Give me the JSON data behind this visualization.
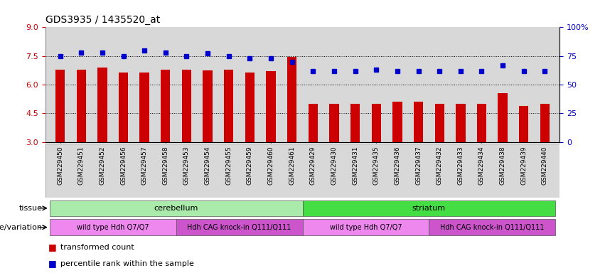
{
  "title": "GDS3935 / 1435520_at",
  "samples": [
    "GSM229450",
    "GSM229451",
    "GSM229452",
    "GSM229456",
    "GSM229457",
    "GSM229458",
    "GSM229453",
    "GSM229454",
    "GSM229455",
    "GSM229459",
    "GSM229460",
    "GSM229461",
    "GSM229429",
    "GSM229430",
    "GSM229431",
    "GSM229435",
    "GSM229436",
    "GSM229437",
    "GSM229432",
    "GSM229433",
    "GSM229434",
    "GSM229438",
    "GSM229439",
    "GSM229440"
  ],
  "bar_values": [
    6.8,
    6.8,
    6.9,
    6.65,
    6.65,
    6.8,
    6.8,
    6.75,
    6.8,
    6.65,
    6.7,
    7.45,
    5.0,
    5.0,
    5.0,
    5.0,
    5.1,
    5.1,
    5.0,
    5.0,
    5.0,
    5.55,
    4.9,
    5.0
  ],
  "percentile_values": [
    75,
    78,
    78,
    75,
    80,
    78,
    75,
    77,
    75,
    73,
    73,
    70,
    62,
    62,
    62,
    63,
    62,
    62,
    62,
    62,
    62,
    67,
    62,
    62
  ],
  "bar_color": "#cc0000",
  "percentile_color": "#0000cc",
  "ylim_left": [
    3,
    9
  ],
  "yticks_left": [
    3,
    4.5,
    6,
    7.5,
    9
  ],
  "ylim_right": [
    0,
    100
  ],
  "yticks_right": [
    0,
    25,
    50,
    75,
    100
  ],
  "ytick_right_labels": [
    "0",
    "25",
    "50",
    "75",
    "100%"
  ],
  "grid_values": [
    4.5,
    6.0,
    7.5
  ],
  "tissue_groups": [
    {
      "label": "cerebellum",
      "start": 0,
      "end": 11,
      "color": "#aaeaaa"
    },
    {
      "label": "striatum",
      "start": 12,
      "end": 23,
      "color": "#44dd44"
    }
  ],
  "genotype_groups": [
    {
      "label": "wild type Hdh Q7/Q7",
      "start": 0,
      "end": 5,
      "color": "#ee88ee"
    },
    {
      "label": "Hdh CAG knock-in Q111/Q111",
      "start": 6,
      "end": 11,
      "color": "#cc55cc"
    },
    {
      "label": "wild type Hdh Q7/Q7",
      "start": 12,
      "end": 17,
      "color": "#ee88ee"
    },
    {
      "label": "Hdh CAG knock-in Q111/Q111",
      "start": 18,
      "end": 23,
      "color": "#cc55cc"
    }
  ],
  "legend_items": [
    {
      "label": "transformed count",
      "color": "#cc0000"
    },
    {
      "label": "percentile rank within the sample",
      "color": "#0000cc"
    }
  ],
  "row_labels": [
    "tissue",
    "genotype/variation"
  ],
  "background_color": "#ffffff",
  "plot_bg_color": "#d8d8d8"
}
